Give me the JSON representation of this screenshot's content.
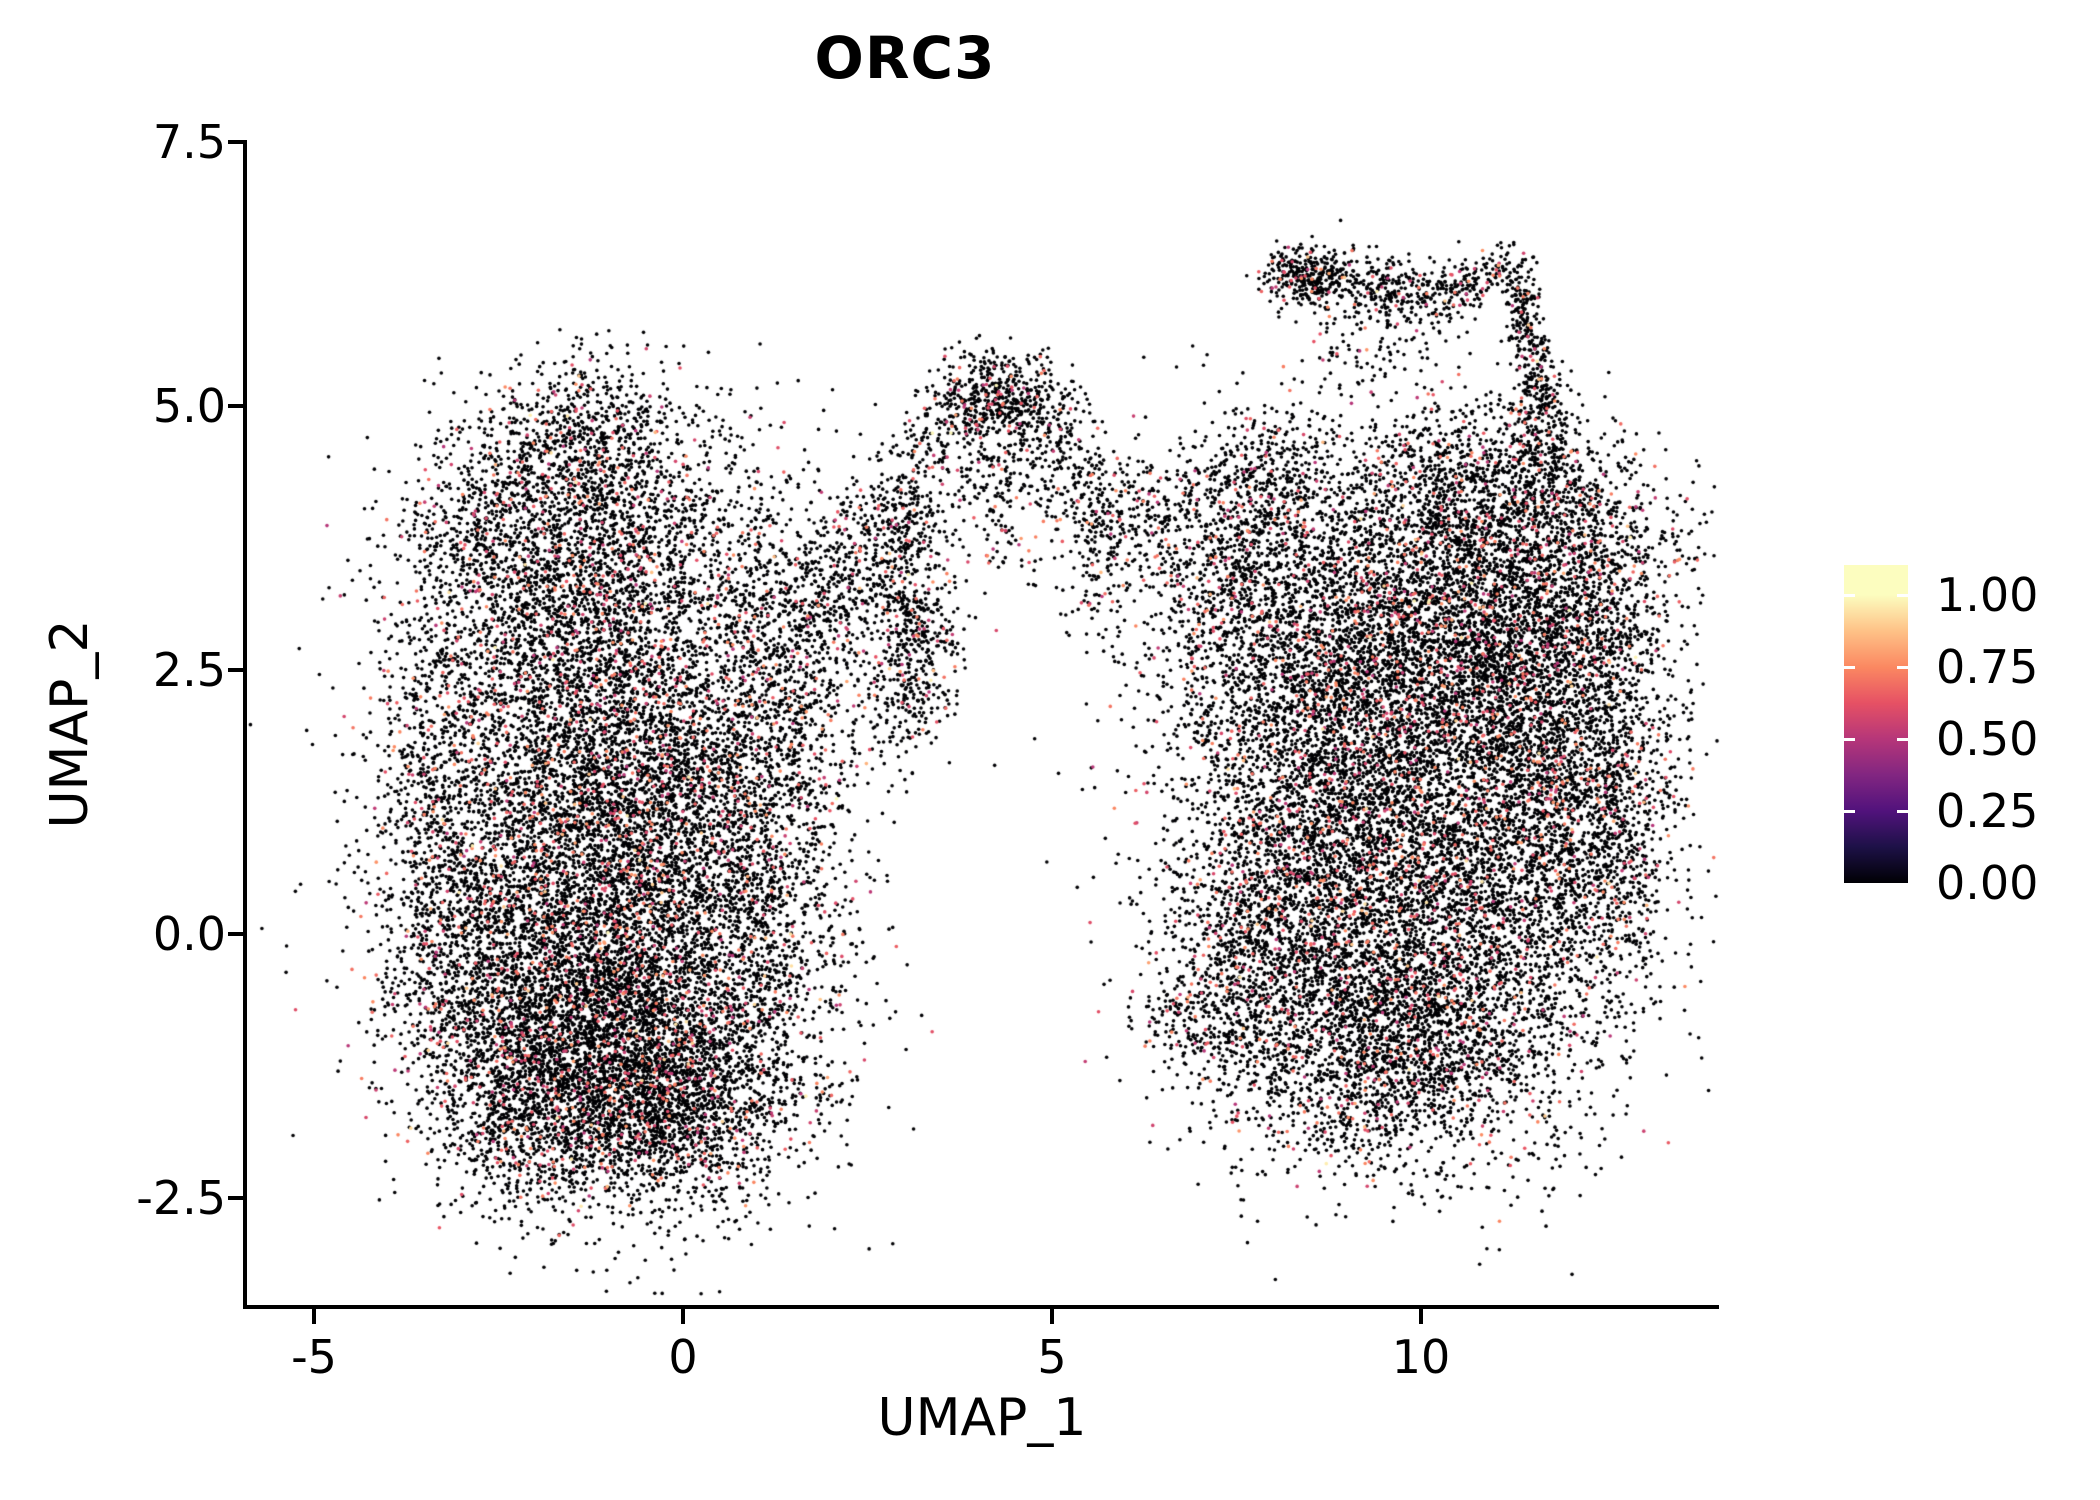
{
  "title": "ORC3",
  "colorbar": {
    "tick_labels": [
      "1.00",
      "0.75",
      "0.50",
      "0.25",
      "0.00"
    ],
    "tick_values": [
      1.0,
      0.75,
      0.5,
      0.25,
      0.0
    ],
    "palette": "magma",
    "stops": [
      {
        "v": 0.0,
        "c": "#000004"
      },
      {
        "v": 0.125,
        "c": "#1D1147"
      },
      {
        "v": 0.25,
        "c": "#51127C"
      },
      {
        "v": 0.375,
        "c": "#822681"
      },
      {
        "v": 0.5,
        "c": "#B63679"
      },
      {
        "v": 0.625,
        "c": "#E65164"
      },
      {
        "v": 0.75,
        "c": "#FB8861"
      },
      {
        "v": 0.875,
        "c": "#FEC287"
      },
      {
        "v": 1.0,
        "c": "#FCFDBF"
      }
    ],
    "bar_top_value": 1.104
  },
  "chart_data": {
    "type": "scatter",
    "title": "ORC3",
    "xlabel": "UMAP_1",
    "ylabel": "UMAP_2",
    "xlim": [
      -5.94,
      14.04
    ],
    "ylim": [
      -3.53,
      7.5
    ],
    "x_ticks": [
      {
        "label": "-5",
        "v": -5
      },
      {
        "label": "0",
        "v": 0
      },
      {
        "label": "5",
        "v": 5
      },
      {
        "label": "10",
        "v": 10
      }
    ],
    "y_ticks": [
      {
        "label": "7.5",
        "v": 7.5
      },
      {
        "label": "5.0",
        "v": 5.0
      },
      {
        "label": "2.5",
        "v": 2.5
      },
      {
        "label": "0.0",
        "v": 0.0
      },
      {
        "label": "-2.5",
        "v": -2.5
      }
    ],
    "grid": false,
    "legend_position": "right",
    "n_points_approx": 42000,
    "point_radius_px": 1.8,
    "seed": 7,
    "expression_distribution": {
      "p_zero": 0.902,
      "mid": {
        "p": 0.093,
        "range": [
          0.5,
          0.78
        ]
      },
      "high": {
        "p": 0.0035,
        "range": [
          0.78,
          0.92
        ]
      },
      "top": {
        "p": 0.0015,
        "range": [
          0.92,
          1.0
        ]
      }
    },
    "clusters": [
      {
        "kind": "g",
        "x": -1.15,
        "y": -0.85,
        "sx": 1.15,
        "sy": 0.8,
        "n": 4000
      },
      {
        "kind": "g",
        "x": -0.3,
        "y": -1.55,
        "sx": 0.85,
        "sy": 0.5,
        "n": 1700
      },
      {
        "kind": "g",
        "x": -1.4,
        "y": 0.6,
        "sx": 1.3,
        "sy": 0.85,
        "n": 3000
      },
      {
        "kind": "g",
        "x": -0.35,
        "y": 1.5,
        "sx": 1.0,
        "sy": 0.85,
        "n": 2200
      },
      {
        "kind": "g",
        "x": -1.7,
        "y": 2.7,
        "sx": 1.05,
        "sy": 0.8,
        "n": 1900
      },
      {
        "kind": "g",
        "x": -0.7,
        "y": 3.8,
        "sx": 1.05,
        "sy": 0.7,
        "n": 1500
      },
      {
        "kind": "g",
        "x": -1.4,
        "y": 4.7,
        "sx": 0.6,
        "sy": 0.35,
        "n": 450
      },
      {
        "kind": "g",
        "x": -2.7,
        "y": 3.9,
        "sx": 0.6,
        "sy": 0.5,
        "n": 500
      },
      {
        "kind": "g",
        "x": 1.1,
        "y": 0.2,
        "sx": 0.65,
        "sy": 1.2,
        "n": 1100
      },
      {
        "kind": "g",
        "x": 1.3,
        "y": 2.6,
        "sx": 0.55,
        "sy": 0.8,
        "n": 700
      },
      {
        "kind": "b",
        "x1": 1.7,
        "y1": 3.1,
        "x2": 3.1,
        "y2": 4.0,
        "s": 0.35,
        "n": 400
      },
      {
        "kind": "g",
        "x": -3.3,
        "y": 1.6,
        "sx": 0.45,
        "sy": 0.9,
        "n": 500
      },
      {
        "kind": "g",
        "x": -3.0,
        "y": -0.4,
        "sx": 0.5,
        "sy": 0.8,
        "n": 500
      },
      {
        "kind": "g",
        "x": -2.2,
        "y": -1.6,
        "sx": 0.6,
        "sy": 0.5,
        "n": 600
      },
      {
        "kind": "g",
        "x": -1.9,
        "y": 5.3,
        "sx": 0.7,
        "sy": 0.25,
        "n": 30
      },
      {
        "kind": "arc",
        "x": 4.3,
        "y": 3.45,
        "rx": 1.35,
        "ry": 1.75,
        "a0": 205,
        "a1": -15,
        "s": 0.22,
        "n": 800
      },
      {
        "kind": "g",
        "x": 4.3,
        "y": 5.0,
        "sx": 0.4,
        "sy": 0.22,
        "n": 300
      },
      {
        "kind": "b",
        "x1": 3.05,
        "y1": 1.95,
        "x2": 3.35,
        "y2": 3.05,
        "s": 0.25,
        "n": 280
      },
      {
        "kind": "g",
        "x": 4.35,
        "y": 4.25,
        "sx": 0.5,
        "sy": 0.45,
        "n": 320
      },
      {
        "kind": "b",
        "x1": 5.5,
        "y1": 3.9,
        "x2": 6.9,
        "y2": 4.0,
        "s": 0.3,
        "n": 230
      },
      {
        "kind": "b",
        "x1": 2.2,
        "y1": 2.2,
        "x2": 3.0,
        "y2": 3.6,
        "s": 0.5,
        "n": 220
      },
      {
        "kind": "g",
        "x": 9.3,
        "y": 2.7,
        "sx": 1.15,
        "sy": 0.95,
        "n": 3600
      },
      {
        "kind": "g",
        "x": 10.9,
        "y": 2.9,
        "sx": 0.95,
        "sy": 0.85,
        "n": 2400
      },
      {
        "kind": "g",
        "x": 8.4,
        "y": 0.7,
        "sx": 0.95,
        "sy": 1.1,
        "n": 2600
      },
      {
        "kind": "g",
        "x": 10.3,
        "y": 0.3,
        "sx": 1.25,
        "sy": 1.0,
        "n": 3600
      },
      {
        "kind": "g",
        "x": 11.9,
        "y": 1.6,
        "sx": 0.8,
        "sy": 1.0,
        "n": 1900
      },
      {
        "kind": "g",
        "x": 9.7,
        "y": -1.15,
        "sx": 1.05,
        "sy": 0.55,
        "n": 1600
      },
      {
        "kind": "g",
        "x": 12.4,
        "y": 3.5,
        "sx": 0.6,
        "sy": 0.6,
        "n": 700
      },
      {
        "kind": "g",
        "x": 7.4,
        "y": 3.3,
        "sx": 0.55,
        "sy": 0.7,
        "n": 700
      },
      {
        "kind": "g",
        "x": 12.55,
        "y": 1.0,
        "sx": 0.5,
        "sy": 0.9,
        "n": 550
      },
      {
        "kind": "g",
        "x": 7.6,
        "y": -0.4,
        "sx": 0.5,
        "sy": 0.7,
        "n": 500
      },
      {
        "kind": "g",
        "x": 6.95,
        "y": -0.8,
        "sx": 0.3,
        "sy": 0.3,
        "n": 120
      },
      {
        "kind": "g",
        "x": 8.0,
        "y": 4.2,
        "sx": 0.5,
        "sy": 0.4,
        "n": 350
      },
      {
        "kind": "g",
        "x": 10.3,
        "y": 4.35,
        "sx": 0.6,
        "sy": 0.35,
        "n": 400
      },
      {
        "kind": "g",
        "x": 11.5,
        "y": 4.2,
        "sx": 0.5,
        "sy": 0.4,
        "n": 350
      },
      {
        "kind": "b",
        "x1": 7.95,
        "y1": 6.3,
        "x2": 10.15,
        "y2": 6.05,
        "s": 0.14,
        "n": 430
      },
      {
        "kind": "g",
        "x": 8.55,
        "y": 6.2,
        "sx": 0.25,
        "sy": 0.12,
        "n": 150
      },
      {
        "kind": "g",
        "x": 9.4,
        "y": 5.65,
        "sx": 0.6,
        "sy": 0.3,
        "n": 130
      },
      {
        "kind": "b",
        "x1": 10.2,
        "y1": 6.0,
        "x2": 11.2,
        "y2": 6.35,
        "s": 0.12,
        "n": 170
      },
      {
        "kind": "b",
        "x1": 11.3,
        "y1": 6.3,
        "x2": 11.62,
        "y2": 5.0,
        "s": 0.13,
        "n": 300
      },
      {
        "kind": "g",
        "x": 11.6,
        "y": 4.75,
        "sx": 0.25,
        "sy": 0.3,
        "n": 150
      },
      {
        "kind": "g",
        "x": 6.3,
        "y": -0.75,
        "sx": 0.35,
        "sy": 0.2,
        "n": 25
      },
      {
        "kind": "b",
        "x1": 5.8,
        "y1": 2.0,
        "x2": 6.6,
        "y2": 2.6,
        "s": 0.4,
        "n": 30
      }
    ]
  }
}
